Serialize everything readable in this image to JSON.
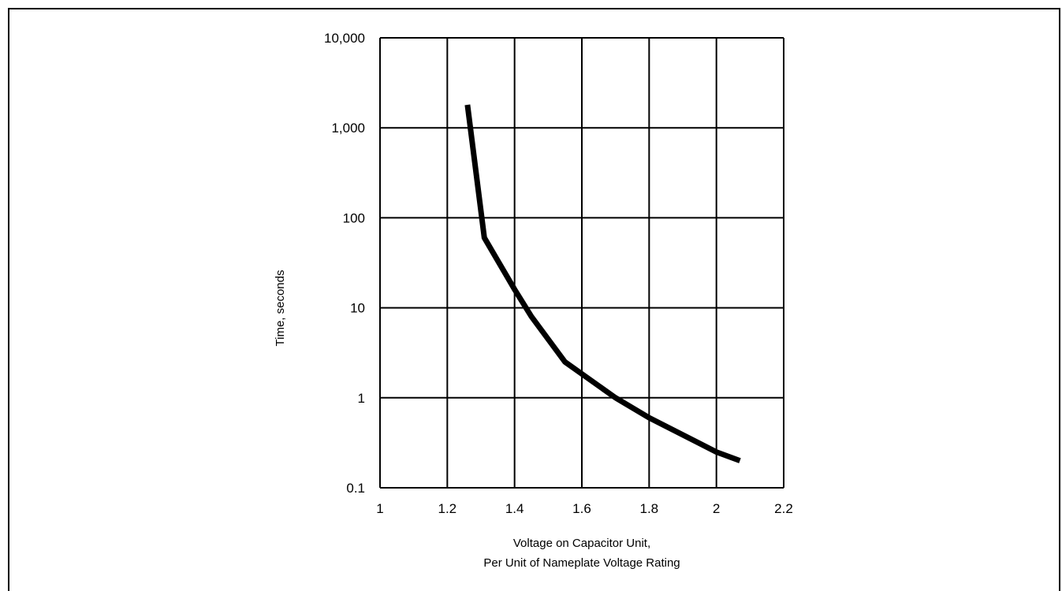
{
  "chart_data": {
    "type": "line",
    "xlabel": [
      "Voltage on Capacitor Unit,",
      "Per Unit of Nameplate Voltage Rating"
    ],
    "ylabel": "Time, seconds",
    "xscale": "linear",
    "yscale": "log",
    "xlim": [
      1,
      2.2
    ],
    "ylim": [
      0.1,
      10000
    ],
    "xticks": [
      "1",
      "1.2",
      "1.4",
      "1.6",
      "1.8",
      "2",
      "2.2"
    ],
    "yticks": [
      "0.1",
      "1",
      "10",
      "100",
      "1,000",
      "10,000"
    ],
    "grid": true,
    "series": [
      {
        "color": "#000000",
        "x": [
          1.26,
          1.31,
          1.4,
          1.45,
          1.55,
          1.7,
          1.8,
          2.0,
          2.07
        ],
        "y": [
          1800,
          60,
          16,
          8,
          2.5,
          1,
          0.6,
          0.25,
          0.2
        ]
      }
    ]
  }
}
